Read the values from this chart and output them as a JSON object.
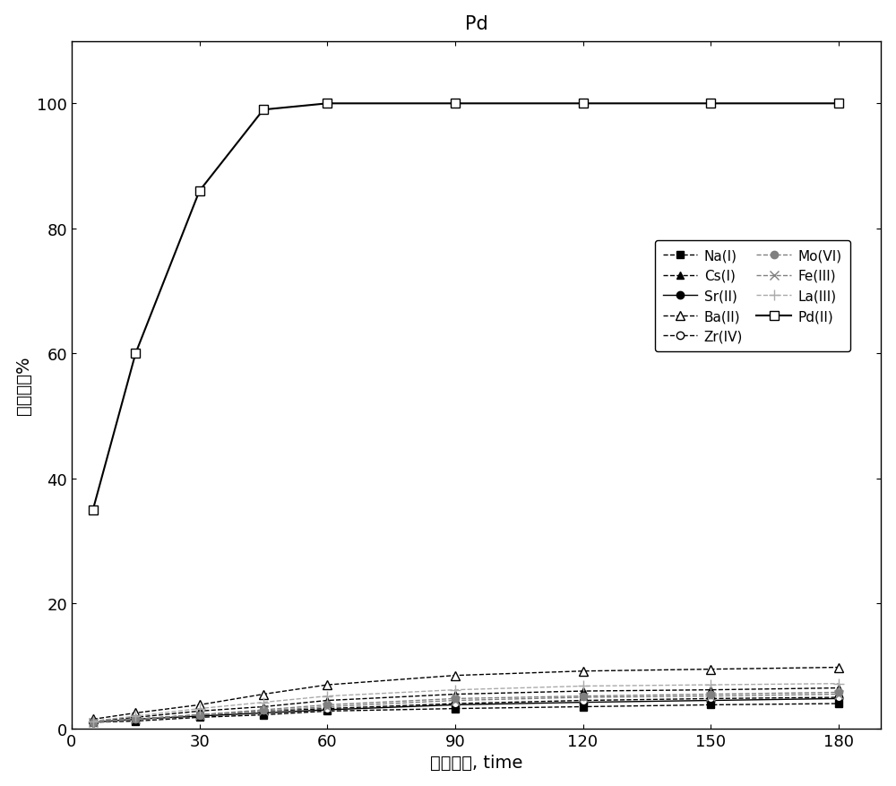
{
  "title": "Pd",
  "xlabel": "接触时间, time",
  "ylabel": "吸附率，%",
  "xlim": [
    0,
    190
  ],
  "ylim": [
    0,
    110
  ],
  "xticks": [
    0,
    30,
    60,
    90,
    120,
    150,
    180
  ],
  "yticks": [
    0,
    20,
    40,
    60,
    80,
    100
  ],
  "series": [
    {
      "label": "Na(I)",
      "x": [
        5,
        15,
        30,
        45,
        60,
        90,
        120,
        150,
        180
      ],
      "y": [
        1.0,
        1.2,
        1.8,
        2.2,
        2.8,
        3.2,
        3.5,
        3.8,
        4.0
      ],
      "color": "#000000",
      "marker": "s",
      "mfc": "black",
      "mec": "black",
      "linestyle": "--",
      "markersize": 6,
      "linewidth": 1.0
    },
    {
      "label": "Cs(I)",
      "x": [
        5,
        15,
        30,
        45,
        60,
        90,
        120,
        150,
        180
      ],
      "y": [
        1.2,
        1.8,
        2.8,
        3.5,
        4.5,
        5.5,
        6.0,
        6.2,
        6.5
      ],
      "color": "#000000",
      "marker": "^",
      "mfc": "black",
      "mec": "black",
      "linestyle": "--",
      "markersize": 6,
      "linewidth": 1.0
    },
    {
      "label": "Sr(II)",
      "x": [
        5,
        15,
        30,
        45,
        60,
        90,
        120,
        150,
        180
      ],
      "y": [
        1.0,
        1.5,
        2.0,
        2.5,
        3.0,
        3.8,
        4.2,
        4.5,
        4.8
      ],
      "color": "#000000",
      "marker": "o",
      "mfc": "black",
      "mec": "black",
      "linestyle": "-",
      "markersize": 6,
      "linewidth": 1.0
    },
    {
      "label": "Ba(II)",
      "x": [
        5,
        15,
        30,
        45,
        60,
        90,
        120,
        150,
        180
      ],
      "y": [
        1.5,
        2.5,
        3.8,
        5.5,
        7.0,
        8.5,
        9.2,
        9.5,
        9.8
      ],
      "color": "#000000",
      "marker": "^",
      "mfc": "white",
      "mec": "black",
      "linestyle": "--",
      "markersize": 7,
      "linewidth": 1.0
    },
    {
      "label": "Zr(IV)",
      "x": [
        5,
        15,
        30,
        45,
        60,
        90,
        120,
        150,
        180
      ],
      "y": [
        1.0,
        1.5,
        2.2,
        2.8,
        3.2,
        4.0,
        4.5,
        4.8,
        5.0
      ],
      "color": "#000000",
      "marker": "o",
      "mfc": "white",
      "mec": "black",
      "linestyle": "--",
      "markersize": 6,
      "linewidth": 1.0
    },
    {
      "label": "Mo(VI)",
      "x": [
        5,
        15,
        30,
        45,
        60,
        90,
        120,
        150,
        180
      ],
      "y": [
        1.0,
        1.5,
        2.2,
        3.0,
        3.8,
        4.8,
        5.2,
        5.5,
        5.8
      ],
      "color": "#808080",
      "marker": "o",
      "mfc": "#808080",
      "mec": "#808080",
      "linestyle": "--",
      "markersize": 6,
      "linewidth": 1.0
    },
    {
      "label": "Fe(III)",
      "x": [
        5,
        15,
        30,
        45,
        60,
        90,
        120,
        150,
        180
      ],
      "y": [
        1.0,
        1.5,
        2.2,
        2.8,
        3.5,
        4.5,
        5.0,
        5.2,
        5.5
      ],
      "color": "#808080",
      "marker": "x",
      "mfc": "#808080",
      "mec": "#808080",
      "linestyle": "--",
      "markersize": 7,
      "linewidth": 1.0
    },
    {
      "label": "La(III)",
      "x": [
        5,
        15,
        30,
        45,
        60,
        90,
        120,
        150,
        180
      ],
      "y": [
        1.2,
        2.0,
        3.2,
        4.2,
        5.2,
        6.2,
        6.8,
        7.0,
        7.2
      ],
      "color": "#aaaaaa",
      "marker": "plus",
      "mfc": "#aaaaaa",
      "mec": "#aaaaaa",
      "linestyle": "--",
      "markersize": 8,
      "linewidth": 1.0
    },
    {
      "label": "Pd(II)",
      "x": [
        5,
        15,
        30,
        45,
        60,
        90,
        120,
        150,
        180
      ],
      "y": [
        35,
        60,
        86,
        99,
        100,
        100,
        100,
        100,
        100
      ],
      "color": "#000000",
      "marker": "s",
      "mfc": "white",
      "mec": "black",
      "linestyle": "-",
      "markersize": 7,
      "linewidth": 1.5
    }
  ],
  "background_color": "#ffffff",
  "title_fontsize": 15,
  "label_fontsize": 14,
  "tick_fontsize": 13,
  "legend_fontsize": 11
}
